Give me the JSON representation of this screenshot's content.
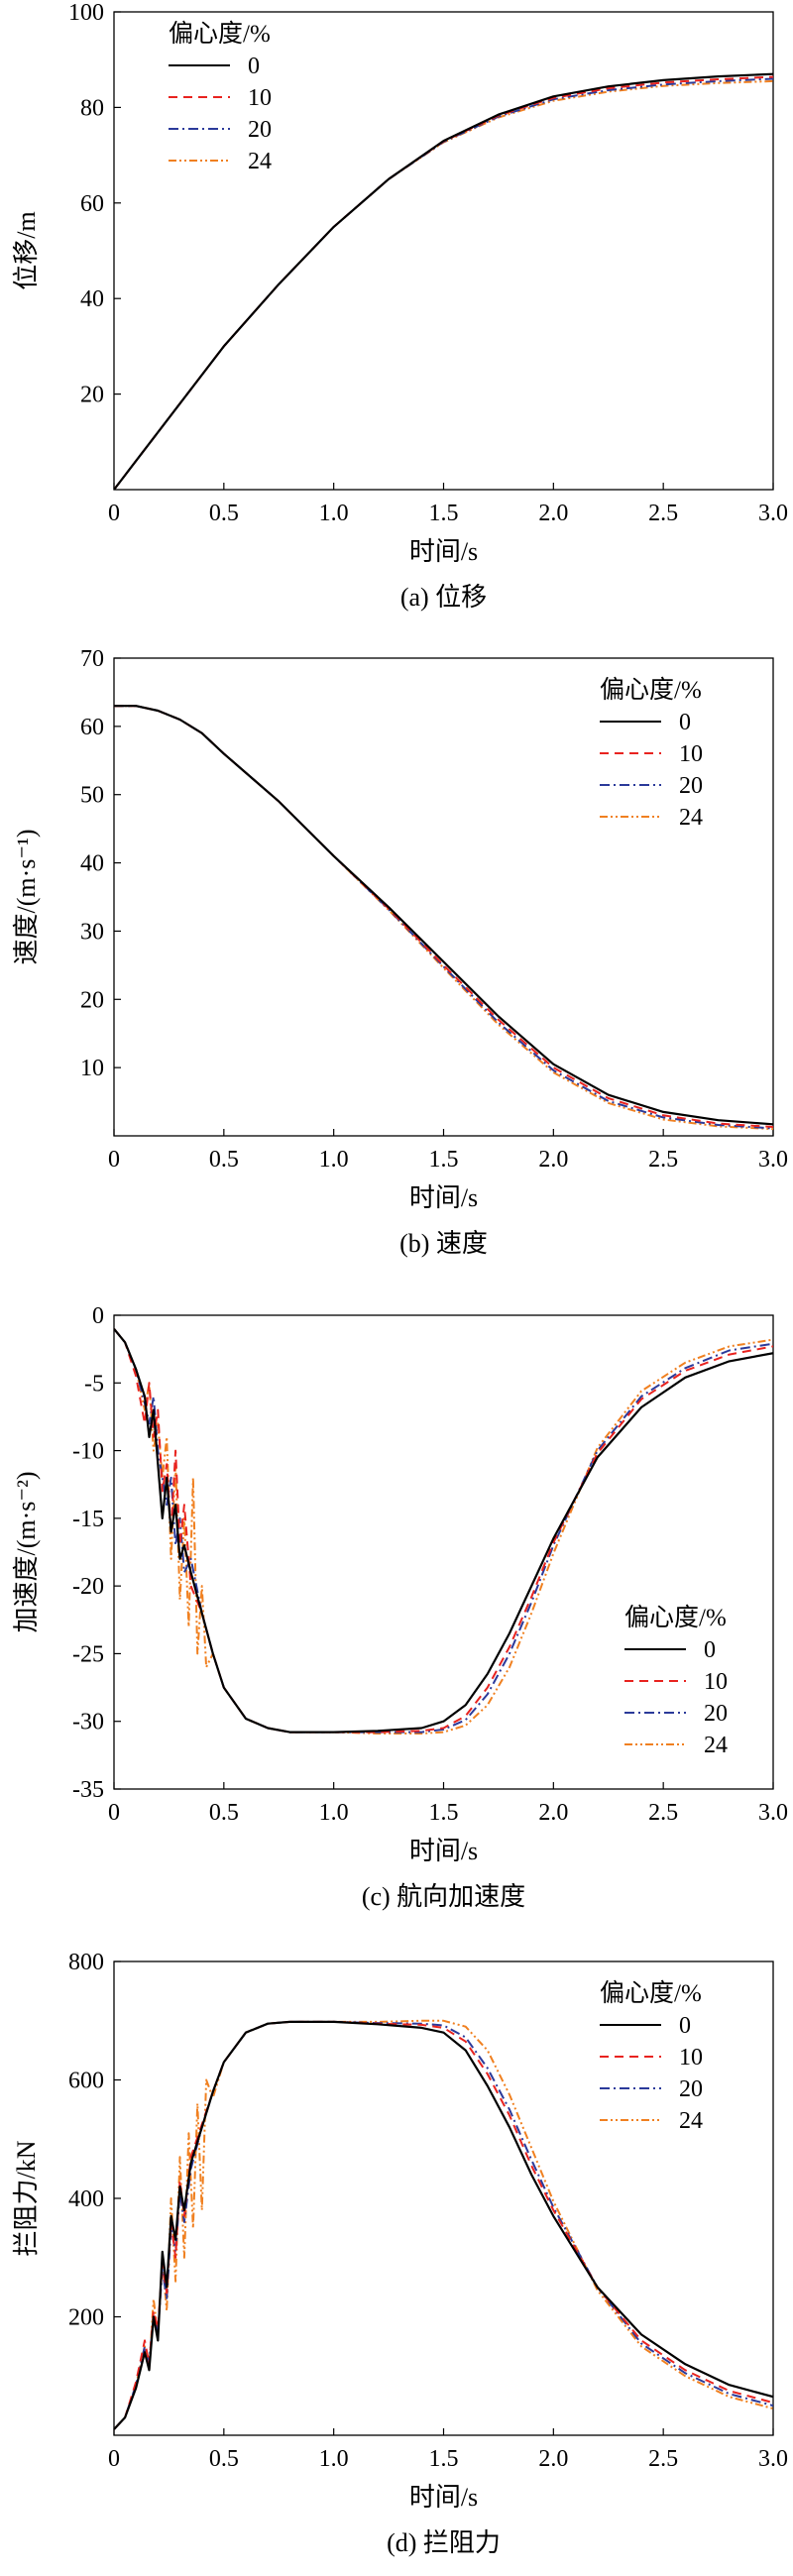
{
  "charts": [
    {
      "type": "line",
      "caption": "(a) 位移",
      "xlabel": "时间/s",
      "ylabel": "位移/m",
      "xlim": [
        0,
        3.0
      ],
      "ylim": [
        0,
        100
      ],
      "xticks": [
        "0",
        "0.5",
        "1.0",
        "1.5",
        "2.0",
        "2.5",
        "3.0"
      ],
      "yticks": [
        "20",
        "40",
        "60",
        "80",
        "100"
      ],
      "ytick_values": [
        20,
        40,
        60,
        80,
        100
      ],
      "legend": {
        "title": "偏心度/%",
        "position": "top-left"
      },
      "series": [
        {
          "name": "0",
          "x": [
            0,
            0.25,
            0.5,
            0.75,
            1.0,
            1.25,
            1.5,
            1.75,
            2.0,
            2.25,
            2.5,
            2.75,
            3.0
          ],
          "values": [
            0,
            15,
            30,
            43,
            55,
            65,
            73,
            78.5,
            82.3,
            84.4,
            85.7,
            86.5,
            87
          ]
        },
        {
          "name": "10",
          "x": [
            0,
            0.25,
            0.5,
            0.75,
            1.0,
            1.25,
            1.5,
            1.75,
            2.0,
            2.25,
            2.5,
            2.75,
            3.0
          ],
          "values": [
            0,
            15,
            30,
            43,
            55,
            65,
            72.9,
            78.3,
            82,
            84,
            85.2,
            85.9,
            86.4
          ]
        },
        {
          "name": "20",
          "x": [
            0,
            0.25,
            0.5,
            0.75,
            1.0,
            1.25,
            1.5,
            1.75,
            2.0,
            2.25,
            2.5,
            2.75,
            3.0
          ],
          "values": [
            0,
            15,
            30,
            43,
            55,
            65,
            72.8,
            78.1,
            81.7,
            83.6,
            84.8,
            85.5,
            86
          ]
        },
        {
          "name": "24",
          "x": [
            0,
            0.25,
            0.5,
            0.75,
            1.0,
            1.25,
            1.5,
            1.75,
            2.0,
            2.25,
            2.5,
            2.75,
            3.0
          ],
          "values": [
            0,
            15,
            30,
            43,
            55,
            65,
            72.7,
            77.9,
            81.4,
            83.3,
            84.5,
            85.1,
            85.5
          ]
        }
      ]
    },
    {
      "type": "line",
      "caption": "(b) 速度",
      "xlabel": "时间/s",
      "ylabel": "速度/(m·s⁻¹)",
      "xlim": [
        0,
        3.0
      ],
      "ylim": [
        0,
        70
      ],
      "xticks": [
        "0",
        "0.5",
        "1.0",
        "1.5",
        "2.0",
        "2.5",
        "3.0"
      ],
      "yticks": [
        "10",
        "20",
        "30",
        "40",
        "50",
        "60",
        "70"
      ],
      "ytick_values": [
        10,
        20,
        30,
        40,
        50,
        60,
        70
      ],
      "legend": {
        "title": "偏心度/%",
        "position": "top-right"
      },
      "series": [
        {
          "name": "0",
          "x": [
            0,
            0.1,
            0.2,
            0.3,
            0.4,
            0.5,
            0.75,
            1.0,
            1.25,
            1.5,
            1.75,
            2.0,
            2.25,
            2.5,
            2.75,
            3.0
          ],
          "values": [
            63,
            63,
            62.3,
            61,
            59,
            56,
            49,
            41,
            33.5,
            25.5,
            17.5,
            10.5,
            6,
            3.5,
            2.3,
            1.7
          ]
        },
        {
          "name": "10",
          "x": [
            0,
            0.1,
            0.2,
            0.3,
            0.4,
            0.5,
            0.75,
            1.0,
            1.25,
            1.5,
            1.75,
            2.0,
            2.25,
            2.5,
            2.75,
            3.0
          ],
          "values": [
            63,
            63,
            62.3,
            61,
            59,
            56,
            49,
            41,
            33.3,
            25,
            17,
            10,
            5.5,
            3,
            1.8,
            1.3
          ]
        },
        {
          "name": "20",
          "x": [
            0,
            0.1,
            0.2,
            0.3,
            0.4,
            0.5,
            0.75,
            1.0,
            1.25,
            1.5,
            1.75,
            2.0,
            2.25,
            2.5,
            2.75,
            3.0
          ],
          "values": [
            63,
            63,
            62.3,
            61,
            59,
            56,
            49,
            41,
            33.2,
            24.8,
            16.6,
            9.6,
            5.1,
            2.7,
            1.6,
            1.1
          ]
        },
        {
          "name": "24",
          "x": [
            0,
            0.1,
            0.2,
            0.3,
            0.4,
            0.5,
            0.75,
            1.0,
            1.25,
            1.5,
            1.75,
            2.0,
            2.25,
            2.5,
            2.75,
            3.0
          ],
          "values": [
            63,
            63,
            62.3,
            61,
            59,
            56,
            49,
            41,
            33.1,
            24.6,
            16.3,
            9.3,
            4.8,
            2.4,
            1.4,
            1.0
          ]
        }
      ]
    },
    {
      "type": "line",
      "caption": "(c) 航向加速度",
      "xlabel": "时间/s",
      "ylabel": "加速度/(m·s⁻²)",
      "xlim": [
        0,
        3.0
      ],
      "ylim": [
        -35,
        0
      ],
      "xticks": [
        "0",
        "0.5",
        "1.0",
        "1.5",
        "2.0",
        "2.5",
        "3.0"
      ],
      "yticks": [
        "0",
        "-5",
        "-10",
        "-15",
        "-20",
        "-25",
        "-30",
        "-35"
      ],
      "ytick_values": [
        0,
        -5,
        -10,
        -15,
        -20,
        -25,
        -30,
        -35
      ],
      "legend": {
        "title": "偏心度/%",
        "position": "bottom-right"
      },
      "series": [
        {
          "name": "0",
          "x": [
            0,
            0.05,
            0.1,
            0.14,
            0.16,
            0.18,
            0.2,
            0.22,
            0.24,
            0.26,
            0.28,
            0.3,
            0.32,
            0.35,
            0.4,
            0.45,
            0.5,
            0.6,
            0.7,
            0.8,
            1.0,
            1.2,
            1.4,
            1.5,
            1.6,
            1.7,
            1.8,
            1.9,
            2.0,
            2.2,
            2.4,
            2.6,
            2.8,
            3.0
          ],
          "values": [
            -1,
            -2,
            -4,
            -6,
            -9,
            -7,
            -11,
            -15,
            -12,
            -16,
            -14,
            -18,
            -17,
            -19,
            -22,
            -25,
            -27.5,
            -29.8,
            -30.5,
            -30.8,
            -30.8,
            -30.7,
            -30.5,
            -30,
            -28.8,
            -26.5,
            -23.5,
            -20,
            -16.5,
            -10.5,
            -6.8,
            -4.6,
            -3.4,
            -2.8
          ]
        },
        {
          "name": "10",
          "x": [
            0,
            0.05,
            0.1,
            0.14,
            0.16,
            0.18,
            0.2,
            0.22,
            0.24,
            0.26,
            0.28,
            0.3,
            0.32,
            0.35,
            0.4,
            0.45,
            0.5,
            0.6,
            0.7,
            0.8,
            1.0,
            1.2,
            1.4,
            1.5,
            1.6,
            1.7,
            1.8,
            1.9,
            2.0,
            2.2,
            2.4,
            2.6,
            2.8,
            3.0
          ],
          "values": [
            -1,
            -2,
            -4.5,
            -8,
            -5,
            -9,
            -7,
            -13,
            -11,
            -16,
            -10,
            -17,
            -14,
            -20,
            -22,
            -25,
            -27.5,
            -29.8,
            -30.5,
            -30.8,
            -30.8,
            -30.8,
            -30.7,
            -30.5,
            -29.6,
            -27.5,
            -24.5,
            -20.8,
            -16.8,
            -10.2,
            -6.2,
            -4.1,
            -2.9,
            -2.3
          ]
        },
        {
          "name": "20",
          "x": [
            0,
            0.05,
            0.1,
            0.14,
            0.16,
            0.18,
            0.2,
            0.22,
            0.24,
            0.26,
            0.28,
            0.3,
            0.32,
            0.35,
            0.4,
            0.45,
            0.5,
            0.6,
            0.7,
            0.8,
            1.0,
            1.2,
            1.4,
            1.5,
            1.6,
            1.7,
            1.8,
            1.9,
            2.0,
            2.2,
            2.4,
            2.6,
            2.8,
            3.0
          ],
          "values": [
            -1,
            -2,
            -4,
            -6.5,
            -8,
            -6,
            -10,
            -12,
            -14,
            -12,
            -17,
            -15,
            -19,
            -18,
            -22,
            -25,
            -27.5,
            -29.8,
            -30.5,
            -30.8,
            -30.8,
            -30.8,
            -30.8,
            -30.6,
            -29.9,
            -28,
            -25,
            -21.2,
            -17,
            -10,
            -6,
            -3.9,
            -2.6,
            -2.1
          ]
        },
        {
          "name": "24",
          "x": [
            0,
            0.05,
            0.1,
            0.14,
            0.16,
            0.18,
            0.2,
            0.22,
            0.24,
            0.26,
            0.28,
            0.3,
            0.32,
            0.34,
            0.36,
            0.38,
            0.4,
            0.42,
            0.45,
            0.5,
            0.6,
            0.7,
            0.8,
            1.0,
            1.2,
            1.4,
            1.5,
            1.6,
            1.7,
            1.8,
            1.9,
            2.0,
            2.2,
            2.4,
            2.6,
            2.8,
            3.0
          ],
          "values": [
            -1,
            -2,
            -4,
            -7,
            -5,
            -10,
            -8,
            -12,
            -9,
            -18,
            -11,
            -21,
            -15,
            -23,
            -12,
            -25,
            -20,
            -26,
            -25,
            -27.5,
            -29.8,
            -30.5,
            -30.8,
            -30.8,
            -30.9,
            -30.9,
            -30.8,
            -30.3,
            -28.8,
            -26,
            -22,
            -17.6,
            -9.8,
            -5.6,
            -3.5,
            -2.3,
            -1.8
          ]
        }
      ]
    },
    {
      "type": "line",
      "caption": "(d) 拦阻力",
      "xlabel": "时间/s",
      "ylabel": "拦阻力/kN",
      "xlim": [
        0,
        3.0
      ],
      "ylim": [
        0,
        800
      ],
      "xticks": [
        "0",
        "0.5",
        "1.0",
        "1.5",
        "2.0",
        "2.5",
        "3.0"
      ],
      "yticks": [
        "200",
        "400",
        "600",
        "800"
      ],
      "ytick_values": [
        200,
        400,
        600,
        800
      ],
      "legend": {
        "title": "偏心度/%",
        "position": "top-right"
      },
      "series": [
        {
          "name": "0",
          "x": [
            0,
            0.05,
            0.1,
            0.14,
            0.16,
            0.18,
            0.2,
            0.22,
            0.24,
            0.26,
            0.28,
            0.3,
            0.32,
            0.35,
            0.4,
            0.45,
            0.5,
            0.6,
            0.7,
            0.8,
            1.0,
            1.2,
            1.4,
            1.5,
            1.6,
            1.7,
            1.8,
            1.9,
            2.0,
            2.2,
            2.4,
            2.6,
            2.8,
            3.0
          ],
          "values": [
            10,
            30,
            80,
            140,
            110,
            200,
            160,
            310,
            250,
            370,
            330,
            420,
            380,
            460,
            520,
            580,
            630,
            680,
            695,
            698,
            698,
            694,
            688,
            680,
            650,
            590,
            520,
            440,
            370,
            250,
            170,
            120,
            85,
            65
          ]
        },
        {
          "name": "10",
          "x": [
            0,
            0.05,
            0.1,
            0.14,
            0.16,
            0.18,
            0.2,
            0.22,
            0.24,
            0.26,
            0.28,
            0.3,
            0.32,
            0.35,
            0.4,
            0.45,
            0.5,
            0.6,
            0.7,
            0.8,
            1.0,
            1.2,
            1.4,
            1.5,
            1.6,
            1.7,
            1.8,
            1.9,
            2.0,
            2.2,
            2.4,
            2.6,
            2.8,
            3.0
          ],
          "values": [
            10,
            30,
            90,
            160,
            120,
            210,
            180,
            290,
            240,
            360,
            300,
            430,
            370,
            470,
            525,
            580,
            630,
            680,
            695,
            698,
            698,
            695,
            693,
            688,
            665,
            610,
            540,
            455,
            380,
            250,
            160,
            110,
            75,
            55
          ]
        },
        {
          "name": "20",
          "x": [
            0,
            0.05,
            0.1,
            0.14,
            0.16,
            0.18,
            0.2,
            0.22,
            0.24,
            0.26,
            0.28,
            0.3,
            0.32,
            0.35,
            0.4,
            0.45,
            0.5,
            0.6,
            0.7,
            0.8,
            1.0,
            1.2,
            1.4,
            1.5,
            1.6,
            1.7,
            1.8,
            1.9,
            2.0,
            2.2,
            2.4,
            2.6,
            2.8,
            3.0
          ],
          "values": [
            10,
            30,
            85,
            150,
            125,
            200,
            175,
            280,
            230,
            350,
            310,
            410,
            360,
            450,
            520,
            580,
            630,
            680,
            695,
            698,
            698,
            696,
            695,
            692,
            672,
            620,
            550,
            465,
            385,
            250,
            155,
            105,
            70,
            50
          ]
        },
        {
          "name": "24",
          "x": [
            0,
            0.05,
            0.1,
            0.14,
            0.16,
            0.18,
            0.2,
            0.22,
            0.24,
            0.26,
            0.28,
            0.3,
            0.32,
            0.34,
            0.36,
            0.38,
            0.4,
            0.42,
            0.45,
            0.5,
            0.6,
            0.7,
            0.8,
            1.0,
            1.2,
            1.4,
            1.5,
            1.6,
            1.7,
            1.8,
            1.9,
            2.0,
            2.2,
            2.4,
            2.6,
            2.8,
            3.0
          ],
          "values": [
            10,
            30,
            85,
            150,
            110,
            230,
            170,
            300,
            210,
            400,
            260,
            470,
            300,
            510,
            350,
            560,
            380,
            600,
            570,
            630,
            680,
            695,
            698,
            698,
            698,
            700,
            700,
            690,
            650,
            575,
            485,
            395,
            245,
            150,
            100,
            65,
            45
          ]
        }
      ]
    }
  ],
  "style": {
    "colors": {
      "0": "#000000",
      "10": "#e8231f",
      "20": "#2b3a9a",
      "24": "#f08020"
    },
    "dashes": {
      "0": "",
      "10": "9,6",
      "20": "10,4,2,4",
      "24": "8,3,2,3,2,3"
    }
  }
}
